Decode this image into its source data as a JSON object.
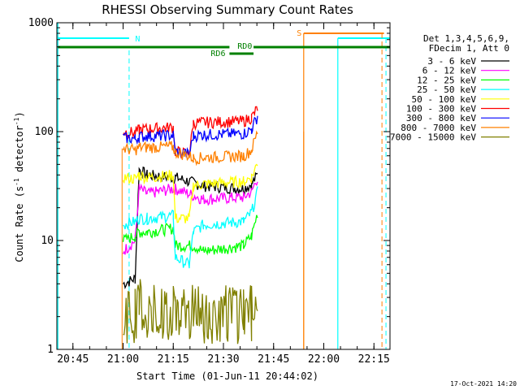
{
  "chart_data": {
    "type": "line",
    "title": "RHESSI Observing Summary Count Rates",
    "xlabel": "Start Time (01-Jun-11 20:44:02)",
    "ylabel": "Count Rate (s",
    "ylabel_sup1": "-1",
    "ylabel_mid": " detector",
    "ylabel_sup2": "-1",
    "ylabel_end": ")",
    "yscale": "log",
    "ylim": [
      1,
      1000
    ],
    "xlim_minutes": [
      20.67,
      22.33
    ],
    "x_ticks": [
      {
        "value": 20.75,
        "label": "20:45"
      },
      {
        "value": 21.0,
        "label": "21:00"
      },
      {
        "value": 21.25,
        "label": "21:15"
      },
      {
        "value": 21.5,
        "label": "21:30"
      },
      {
        "value": 21.75,
        "label": "21:45"
      },
      {
        "value": 22.0,
        "label": "22:00"
      },
      {
        "value": 22.25,
        "label": "22:15"
      }
    ],
    "y_ticks": [
      {
        "value": 1,
        "label": "1"
      },
      {
        "value": 10,
        "label": "10"
      },
      {
        "value": 100,
        "label": "100"
      },
      {
        "value": 1000,
        "label": "1000"
      }
    ],
    "legend": {
      "header1": "Det 1,3,4,5,6,9,",
      "header2": "FDecim 1, Att 0",
      "placement": "right"
    },
    "series": [
      {
        "name": "3 - 6 keV",
        "color": "#000000",
        "segments": [
          [
            21.0,
            4.0
          ],
          [
            21.06,
            4.5
          ],
          [
            21.08,
            45
          ],
          [
            21.12,
            40
          ],
          [
            21.25,
            38
          ],
          [
            21.26,
            38
          ],
          [
            21.4,
            32
          ],
          [
            21.6,
            30
          ],
          [
            21.64,
            33
          ],
          [
            21.67,
            40
          ]
        ]
      },
      {
        "name": "6 - 12 keV",
        "color": "#ff00ff",
        "segments": [
          [
            21.0,
            8
          ],
          [
            21.06,
            10
          ],
          [
            21.08,
            30
          ],
          [
            21.12,
            27
          ],
          [
            21.25,
            30
          ],
          [
            21.26,
            30
          ],
          [
            21.4,
            24
          ],
          [
            21.6,
            25
          ],
          [
            21.64,
            28
          ],
          [
            21.67,
            38
          ]
        ]
      },
      {
        "name": "12 - 25 keV",
        "color": "#00ff00",
        "segments": [
          [
            21.0,
            10
          ],
          [
            21.06,
            11
          ],
          [
            21.08,
            12
          ],
          [
            21.12,
            12
          ],
          [
            21.25,
            13
          ],
          [
            21.26,
            9
          ],
          [
            21.35,
            9
          ],
          [
            21.4,
            8
          ],
          [
            21.6,
            9
          ],
          [
            21.64,
            11
          ],
          [
            21.67,
            18
          ]
        ]
      },
      {
        "name": "25 - 50 keV",
        "color": "#00ffff",
        "segments": [
          [
            21.0,
            14
          ],
          [
            21.06,
            15
          ],
          [
            21.08,
            16
          ],
          [
            21.12,
            16
          ],
          [
            21.25,
            17
          ],
          [
            21.26,
            7
          ],
          [
            21.33,
            6
          ],
          [
            21.35,
            12
          ],
          [
            21.4,
            14
          ],
          [
            21.6,
            15
          ],
          [
            21.64,
            18
          ],
          [
            21.67,
            28
          ]
        ]
      },
      {
        "name": "50 - 100 keV",
        "color": "#ffff00",
        "segments": [
          [
            21.0,
            38
          ],
          [
            21.06,
            37
          ],
          [
            21.08,
            40
          ],
          [
            21.12,
            38
          ],
          [
            21.25,
            40
          ],
          [
            21.26,
            16
          ],
          [
            21.33,
            16
          ],
          [
            21.35,
            32
          ],
          [
            21.4,
            33
          ],
          [
            21.6,
            35
          ],
          [
            21.64,
            38
          ],
          [
            21.67,
            52
          ]
        ]
      },
      {
        "name": "100 - 300 keV",
        "color": "#ff0000",
        "segments": [
          [
            21.0,
            100
          ],
          [
            21.06,
            98
          ],
          [
            21.08,
            104
          ],
          [
            21.12,
            106
          ],
          [
            21.25,
            110
          ],
          [
            21.26,
            66
          ],
          [
            21.33,
            62
          ],
          [
            21.35,
            120
          ],
          [
            21.4,
            122
          ],
          [
            21.6,
            125
          ],
          [
            21.64,
            135
          ],
          [
            21.67,
            165
          ]
        ]
      },
      {
        "name": "300 - 800 keV",
        "color": "#0000ff",
        "segments": [
          [
            21.0,
            88
          ],
          [
            21.06,
            86
          ],
          [
            21.08,
            90
          ],
          [
            21.12,
            91
          ],
          [
            21.25,
            93
          ],
          [
            21.26,
            66
          ],
          [
            21.33,
            62
          ],
          [
            21.35,
            92
          ],
          [
            21.4,
            94
          ],
          [
            21.6,
            96
          ],
          [
            21.64,
            105
          ],
          [
            21.67,
            140
          ]
        ]
      },
      {
        "name": "800 - 7000 keV",
        "color": "#ff8000",
        "segments": [
          [
            21.0,
            70
          ],
          [
            21.06,
            68
          ],
          [
            21.08,
            72
          ],
          [
            21.12,
            72
          ],
          [
            21.25,
            73
          ],
          [
            21.26,
            65
          ],
          [
            21.33,
            60
          ],
          [
            21.35,
            57
          ],
          [
            21.4,
            58
          ],
          [
            21.6,
            60
          ],
          [
            21.64,
            68
          ],
          [
            21.67,
            100
          ]
        ]
      },
      {
        "name": "7000 - 15000 keV",
        "color": "#808000",
        "segments": [
          [
            21.0,
            2
          ],
          [
            21.06,
            2
          ],
          [
            21.08,
            3
          ],
          [
            21.12,
            2
          ],
          [
            21.25,
            2
          ],
          [
            21.26,
            2
          ],
          [
            21.35,
            2
          ],
          [
            21.4,
            2
          ],
          [
            21.6,
            2
          ],
          [
            21.64,
            2
          ],
          [
            21.67,
            3
          ]
        ]
      }
    ],
    "annotations": {
      "saa_label": "S",
      "night_label": "N",
      "rd0_label": "RD0",
      "rd6_label": "RD6",
      "saa_color": "#ff8000",
      "night_color": "#00ffff",
      "decim_color": "#008000"
    }
  },
  "footer_timestamp": "17-Oct-2021 14:20"
}
